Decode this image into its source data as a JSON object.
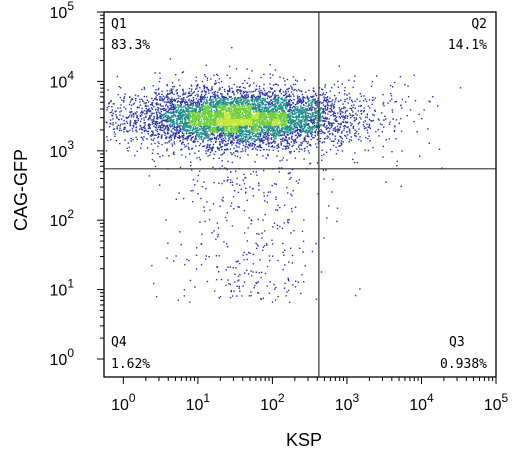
{
  "chart_data": {
    "type": "scatter",
    "title": "",
    "xlabel": "KSP",
    "ylabel": "CAG-GFP",
    "x_scale": "log",
    "y_scale": "log",
    "xlim": [
      0.55,
      100000
    ],
    "ylim": [
      0.55,
      100000
    ],
    "x_ticks": [
      {
        "value": 1,
        "base": "10",
        "exp": "0"
      },
      {
        "value": 10,
        "base": "10",
        "exp": "1"
      },
      {
        "value": 100,
        "base": "10",
        "exp": "2"
      },
      {
        "value": 1000,
        "base": "10",
        "exp": "3"
      },
      {
        "value": 10000,
        "base": "10",
        "exp": "4"
      },
      {
        "value": 100000,
        "base": "10",
        "exp": "5"
      }
    ],
    "y_ticks": [
      {
        "value": 1,
        "base": "10",
        "exp": "0"
      },
      {
        "value": 10,
        "base": "10",
        "exp": "1"
      },
      {
        "value": 100,
        "base": "10",
        "exp": "2"
      },
      {
        "value": 1000,
        "base": "10",
        "exp": "3"
      },
      {
        "value": 10000,
        "base": "10",
        "exp": "4"
      },
      {
        "value": 100000,
        "base": "10",
        "exp": "5"
      }
    ],
    "gate": {
      "x": 420,
      "y": 550
    },
    "quadrants": [
      {
        "id": "Q1",
        "name": "Q1",
        "percent": "83.3%",
        "corner": "top-left"
      },
      {
        "id": "Q2",
        "name": "Q2",
        "percent": "14.1%",
        "corner": "top-right"
      },
      {
        "id": "Q3",
        "name": "Q3",
        "percent": "0.938%",
        "corner": "bottom-right"
      },
      {
        "id": "Q4",
        "name": "Q4",
        "percent": "1.62%",
        "corner": "bottom-left"
      }
    ],
    "grid": false,
    "legend": "none",
    "colors": {
      "sparse": "#2832a8",
      "mid": "#1f8f8a",
      "dense": "#6fcf3a",
      "densest": "#c8e635",
      "axis": "#000000",
      "gate_line": "#333333"
    }
  }
}
